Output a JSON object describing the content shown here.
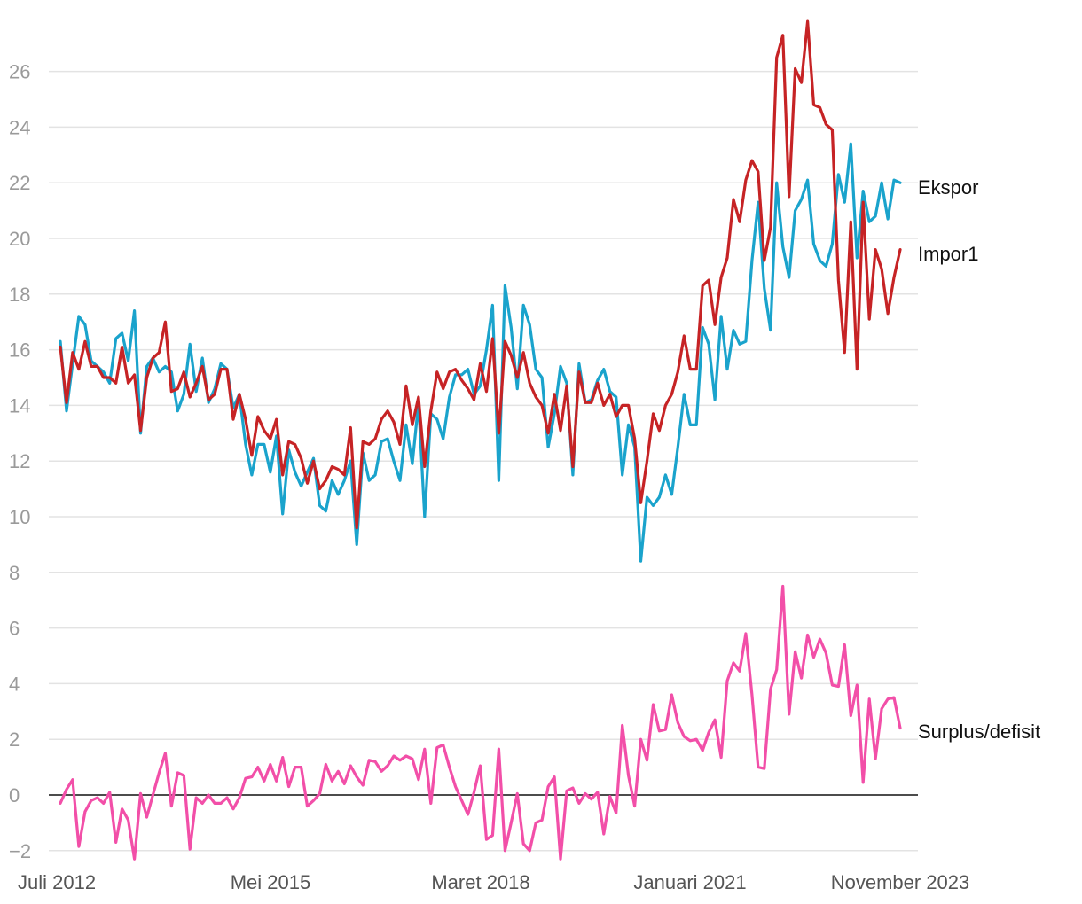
{
  "chart_data": {
    "type": "line",
    "title": "",
    "xlabel": "",
    "ylabel": "",
    "x_start": "2012-07",
    "x_end": "2023-11",
    "x_tick_labels": [
      "Juli 2012",
      "Mei 2015",
      "Maret 2018",
      "Januari 2021",
      "November 2023"
    ],
    "x_tick_dates": [
      "2012-07",
      "2015-05",
      "2018-03",
      "2021-01",
      "2023-11"
    ],
    "y_ticks": [
      -2,
      0,
      2,
      4,
      6,
      8,
      10,
      12,
      14,
      16,
      18,
      20,
      22,
      24,
      26
    ],
    "ylim": [
      -2.6,
      27.6
    ],
    "grid": true,
    "legend": "direct labels at line ends (right)",
    "series": [
      {
        "name": "Ekspor",
        "color": "#1aa3cc",
        "values": [
          16.3,
          13.8,
          15.5,
          17.2,
          16.9,
          15.6,
          15.4,
          15.2,
          14.8,
          16.4,
          16.6,
          15.6,
          17.4,
          13.0,
          15.4,
          15.7,
          15.2,
          15.4,
          15.2,
          13.8,
          14.4,
          16.2,
          14.5,
          15.7,
          14.1,
          14.6,
          15.5,
          15.3,
          13.9,
          14.4,
          12.6,
          11.5,
          12.6,
          12.6,
          11.6,
          12.9,
          10.1,
          12.4,
          11.6,
          11.1,
          11.6,
          12.1,
          10.4,
          10.2,
          11.3,
          10.8,
          11.3,
          12.0,
          9.0,
          12.3,
          11.3,
          11.5,
          12.7,
          12.8,
          12.0,
          11.3,
          13.3,
          11.9,
          14.1,
          10.0,
          13.7,
          13.5,
          12.8,
          14.3,
          15.1,
          15.1,
          15.3,
          14.4,
          14.7,
          16.0,
          17.6,
          11.3,
          18.3,
          16.8,
          14.6,
          17.6,
          16.9,
          15.3,
          15.0,
          12.5,
          13.7,
          15.4,
          14.8,
          11.5,
          15.5,
          14.1,
          14.2,
          14.9,
          15.3,
          14.5,
          14.3,
          11.5,
          13.3,
          12.5,
          8.4,
          10.7,
          10.4,
          10.7,
          11.5,
          10.8,
          12.5,
          14.4,
          13.3,
          13.3,
          16.8,
          16.2,
          14.2,
          17.2,
          15.3,
          16.7,
          16.2,
          16.3,
          19.2,
          21.3,
          18.2,
          16.7,
          22.0,
          19.7,
          18.6,
          21.0,
          21.4,
          22.1,
          19.8,
          19.2,
          19.0,
          19.8,
          22.3,
          21.3,
          23.4,
          19.3,
          21.7,
          20.6,
          20.8,
          22.0,
          20.7,
          22.1,
          22.0
        ]
      },
      {
        "name": "Impor1",
        "color": "#c62325",
        "values": [
          16.1,
          14.1,
          15.9,
          15.3,
          16.3,
          15.4,
          15.4,
          15.0,
          15.0,
          14.8,
          16.1,
          14.8,
          15.1,
          13.1,
          15.0,
          15.7,
          15.9,
          17.0,
          14.5,
          14.6,
          15.2,
          14.3,
          14.8,
          15.4,
          14.2,
          14.4,
          15.3,
          15.3,
          13.5,
          14.4,
          13.5,
          12.2,
          13.6,
          13.1,
          12.8,
          13.5,
          11.5,
          12.7,
          12.6,
          12.1,
          11.2,
          12.0,
          11.0,
          11.3,
          11.8,
          11.7,
          11.5,
          13.2,
          9.6,
          12.7,
          12.6,
          12.8,
          13.5,
          13.8,
          13.4,
          12.6,
          14.7,
          13.3,
          14.3,
          11.8,
          13.8,
          15.2,
          14.6,
          15.2,
          15.3,
          14.9,
          14.6,
          14.2,
          15.5,
          14.5,
          16.4,
          13.0,
          16.3,
          15.8,
          15.0,
          15.9,
          14.8,
          14.3,
          14.0,
          13.0,
          14.4,
          13.1,
          14.7,
          11.8,
          15.2,
          14.1,
          14.1,
          14.8,
          14.0,
          14.4,
          13.6,
          14.0,
          14.0,
          12.8,
          10.5,
          12.0,
          13.7,
          13.1,
          14.0,
          14.4,
          15.2,
          16.5,
          15.3,
          15.3,
          18.3,
          18.5,
          16.9,
          18.6,
          19.3,
          21.4,
          20.6,
          22.1,
          22.8,
          22.4,
          19.2,
          20.4,
          26.5,
          27.3,
          21.5,
          26.1,
          25.6,
          27.8,
          24.8,
          24.7,
          24.1,
          23.9,
          18.5,
          15.9,
          20.6,
          15.3,
          21.3,
          17.1,
          19.6,
          18.9,
          17.3,
          18.6,
          19.6
        ]
      },
      {
        "name": "Surplus/defisit",
        "color": "#f24fa8",
        "values": [
          -0.3,
          0.2,
          0.55,
          -1.85,
          -0.6,
          -0.2,
          -0.1,
          -0.3,
          0.1,
          -1.7,
          -0.5,
          -0.9,
          -2.3,
          0.05,
          -0.8,
          0.0,
          0.8,
          1.5,
          -0.4,
          0.8,
          0.7,
          -1.95,
          -0.1,
          -0.3,
          0.0,
          -0.3,
          -0.3,
          -0.1,
          -0.5,
          -0.1,
          0.6,
          0.65,
          1.0,
          0.5,
          1.1,
          0.5,
          1.35,
          0.3,
          1.0,
          1.0,
          -0.4,
          -0.2,
          0.05,
          1.1,
          0.5,
          0.85,
          0.4,
          1.05,
          0.65,
          0.35,
          1.25,
          1.2,
          0.85,
          1.05,
          1.4,
          1.25,
          1.4,
          1.3,
          0.55,
          1.65,
          -0.3,
          1.7,
          1.8,
          1.0,
          0.3,
          -0.2,
          -0.7,
          0.1,
          1.05,
          -1.6,
          -1.45,
          1.65,
          -2.0,
          -1.0,
          0.05,
          -1.75,
          -2.0,
          -1.0,
          -0.9,
          0.3,
          0.65,
          -2.3,
          0.15,
          0.25,
          -0.3,
          0.05,
          -0.15,
          0.1,
          -1.4,
          -0.05,
          -0.65,
          2.5,
          0.7,
          -0.4,
          2.0,
          1.25,
          3.25,
          2.3,
          2.35,
          3.6,
          2.6,
          2.1,
          1.95,
          2.0,
          1.6,
          2.25,
          2.7,
          1.35,
          4.1,
          4.75,
          4.45,
          5.8,
          3.6,
          1.0,
          0.95,
          3.8,
          4.5,
          7.5,
          2.9,
          5.15,
          4.2,
          5.75,
          4.95,
          5.6,
          5.1,
          3.95,
          3.9,
          5.4,
          2.85,
          3.95,
          0.45,
          3.45,
          1.3,
          3.1,
          3.45,
          3.5,
          2.4
        ]
      }
    ]
  }
}
